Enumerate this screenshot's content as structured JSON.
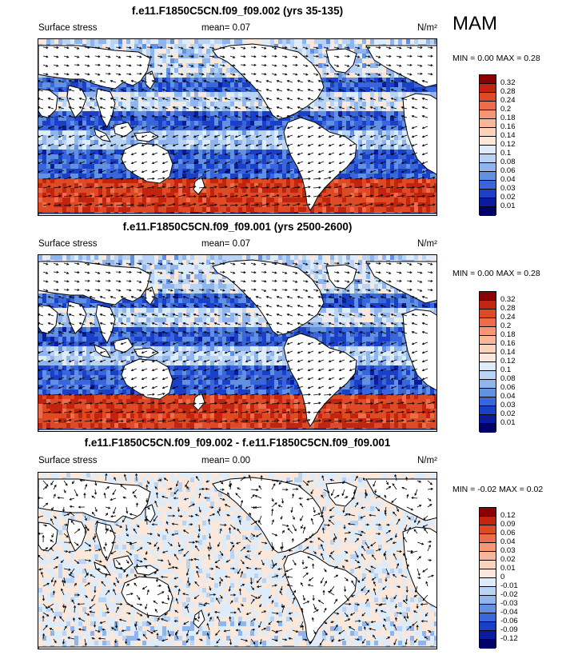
{
  "season": "MAM",
  "panels": [
    {
      "title": "f.e11.F1850C5CN.f09_f09.002 (yrs 35-135)",
      "left_label": "Surface stress",
      "mean_label": "mean=  0.07",
      "units": "N/m²",
      "min_max": "MIN =   0.00 MAX =   0.28",
      "colorbar": {
        "labels": [
          "0.32",
          "0.28",
          "0.24",
          "0.2",
          "0.18",
          "0.16",
          "0.14",
          "0.12",
          "0.1",
          "0.08",
          "0.06",
          "0.04",
          "0.03",
          "0.02",
          "0.01"
        ],
        "colors": [
          "#8b0000",
          "#c1250f",
          "#de4a26",
          "#ee6c4a",
          "#f59675",
          "#f9b698",
          "#fbd2bb",
          "#fbe8da",
          "#deecfa",
          "#b8d3f3",
          "#8fb5ec",
          "#6290e3",
          "#3a66dc",
          "#1a40c8",
          "#0a1c9b",
          "#00006a"
        ]
      },
      "field": "positive"
    },
    {
      "title": "f.e11.F1850C5CN.f09_f09.001 (yrs 2500-2600)",
      "left_label": "Surface stress",
      "mean_label": "mean=  0.07",
      "units": "N/m²",
      "min_max": "MIN =   0.00 MAX =   0.28",
      "colorbar": {
        "labels": [
          "0.32",
          "0.28",
          "0.24",
          "0.2",
          "0.18",
          "0.16",
          "0.14",
          "0.12",
          "0.1",
          "0.08",
          "0.06",
          "0.04",
          "0.03",
          "0.02",
          "0.01"
        ],
        "colors": [
          "#8b0000",
          "#c1250f",
          "#de4a26",
          "#ee6c4a",
          "#f59675",
          "#f9b698",
          "#fbd2bb",
          "#fbe8da",
          "#deecfa",
          "#b8d3f3",
          "#8fb5ec",
          "#6290e3",
          "#3a66dc",
          "#1a40c8",
          "#0a1c9b",
          "#00006a"
        ]
      },
      "field": "positive"
    },
    {
      "title": "f.e11.F1850C5CN.f09_f09.002 - f.e11.F1850C5CN.f09_f09.001",
      "left_label": "Surface stress",
      "mean_label": "mean=  0.00",
      "units": "N/m²",
      "min_max": "MIN = -0.02 MAX =   0.02",
      "colorbar": {
        "labels": [
          "0.12",
          "0.09",
          "0.06",
          "0.04",
          "0.03",
          "0.02",
          "0.01",
          "0",
          "-0.01",
          "-0.02",
          "-0.03",
          "-0.04",
          "-0.06",
          "-0.09",
          "-0.12"
        ],
        "colors": [
          "#8b0000",
          "#c1250f",
          "#de4a26",
          "#ee6c4a",
          "#f59675",
          "#f9b698",
          "#fbd2bb",
          "#fbe8da",
          "#deecfa",
          "#b8d3f3",
          "#8fb5ec",
          "#6290e3",
          "#3a66dc",
          "#1a40c8",
          "#0a1c9b",
          "#00006a"
        ]
      },
      "field": "difference"
    }
  ]
}
